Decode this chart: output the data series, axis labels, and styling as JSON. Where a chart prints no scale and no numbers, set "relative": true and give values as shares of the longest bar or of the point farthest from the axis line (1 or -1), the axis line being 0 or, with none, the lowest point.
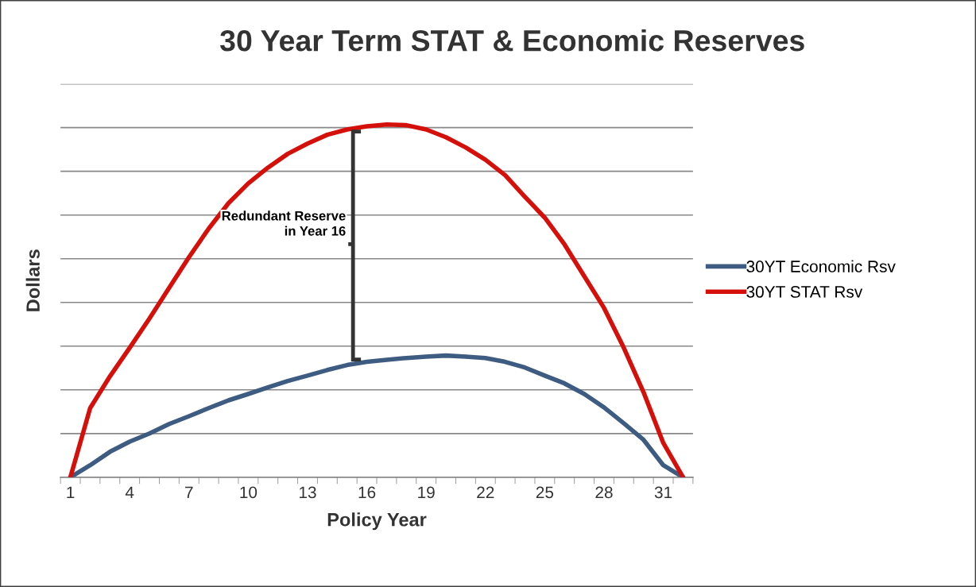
{
  "chart_data": {
    "type": "line",
    "title": "30 Year Term STAT & Economic Reserves",
    "xlabel": "Policy Year",
    "ylabel": "Dollars",
    "categories": [
      "1",
      null,
      null,
      "4",
      null,
      null,
      "7",
      null,
      null,
      "10",
      null,
      null,
      "13",
      null,
      null,
      "16",
      null,
      null,
      "19",
      null,
      null,
      "22",
      null,
      null,
      "25",
      null,
      null,
      "28",
      null,
      null,
      "31",
      null
    ],
    "relative": true,
    "grid": "y",
    "legend": "right",
    "marker": "none",
    "line_style": "solid",
    "annotations": [
      "Redundant Reserve in Year 16"
    ],
    "series": [
      {
        "name": "30YT Economic Rsv",
        "color": "#3e5c82",
        "values": [
          0,
          0.034,
          0.072,
          0.101,
          0.124,
          0.151,
          0.173,
          0.196,
          0.218,
          0.236,
          0.255,
          0.273,
          0.288,
          0.304,
          0.318,
          0.327,
          0.333,
          0.338,
          0.342,
          0.345,
          0.342,
          0.338,
          0.327,
          0.311,
          0.288,
          0.266,
          0.236,
          0.198,
          0.153,
          0.106,
          0.034,
          0
        ]
      },
      {
        "name": "30YT STAT Rsv",
        "color": "#d50f0a",
        "values": [
          0,
          0.196,
          0.286,
          0.367,
          0.45,
          0.537,
          0.624,
          0.705,
          0.777,
          0.833,
          0.878,
          0.917,
          0.946,
          0.971,
          0.986,
          0.995,
          1.0,
          0.998,
          0.986,
          0.964,
          0.935,
          0.9,
          0.856,
          0.795,
          0.736,
          0.66,
          0.57,
          0.48,
          0.367,
          0.241,
          0.097,
          0
        ]
      }
    ]
  }
}
